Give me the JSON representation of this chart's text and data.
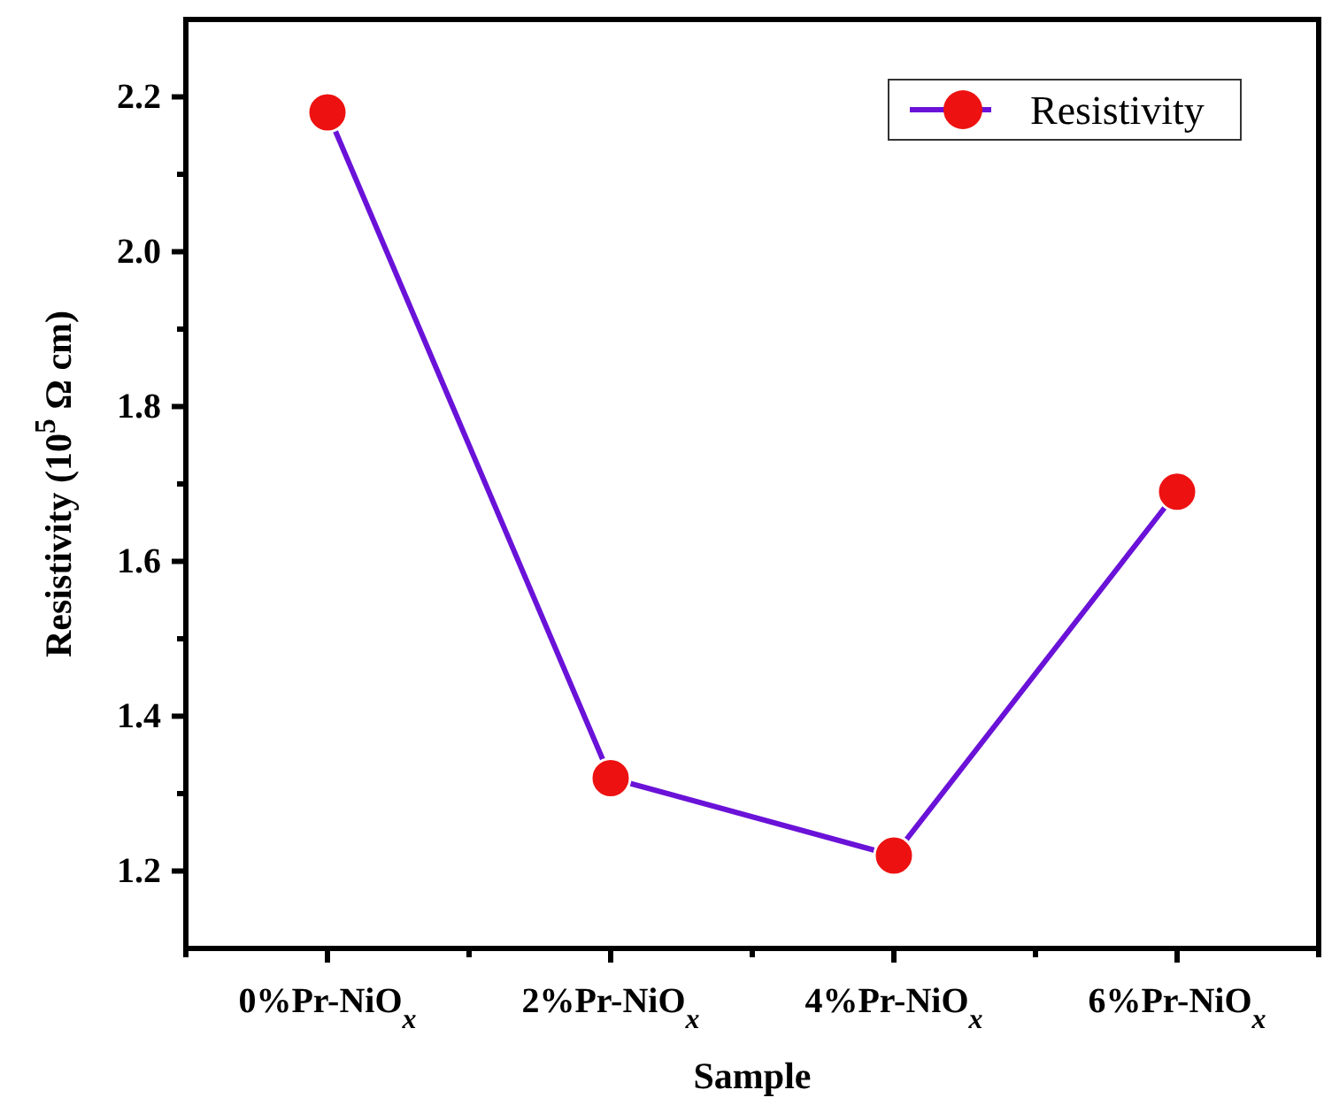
{
  "chart_data": {
    "type": "line",
    "xlabel": "Sample",
    "ylabel": "Resistivity (10$^{5}$ Ω cm)",
    "categories": [
      "0%Pr-NiO$_{x}$",
      "2%Pr-NiO$_{x}$",
      "4%Pr-NiO$_{x}$",
      "6%Pr-NiO$_{x}$"
    ],
    "series": [
      {
        "name": "Resistivity",
        "color": "#6a12d8",
        "colors": [
          "#ee1111",
          "#ee1111",
          "#ee1111",
          "#ee1111"
        ],
        "values": [
          2.18,
          1.32,
          1.22,
          1.69
        ]
      }
    ],
    "ylim": [
      1.1,
      2.3
    ],
    "yticks": [
      1.2,
      1.4,
      1.6,
      1.8,
      {
        "value": 2,
        "label": "2.0"
      },
      2.2
    ],
    "marker": "circle",
    "legend": "top right",
    "grid": false
  }
}
